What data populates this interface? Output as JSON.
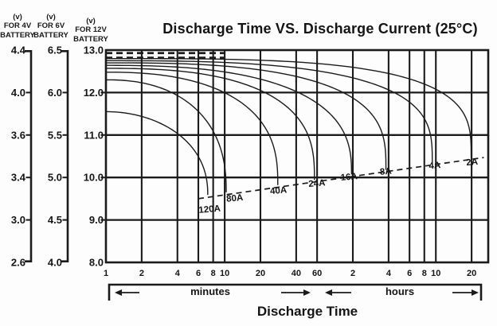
{
  "chart_data": {
    "type": "line",
    "title": "Discharge Time VS. Discharge Current (25°C)",
    "x_axis": {
      "label": "Discharge Time",
      "scale": "log",
      "range_minutes": [
        1,
        1660
      ],
      "unit_sections": [
        {
          "label": "minutes",
          "tick_values_min": [
            1,
            2,
            4,
            6,
            8,
            10,
            20,
            40,
            60
          ],
          "tick_labels": [
            "1",
            "2",
            "4",
            "6",
            "8",
            "10",
            "20",
            "40",
            "60"
          ]
        },
        {
          "label": "hours",
          "tick_values_min": [
            120,
            240,
            360,
            480,
            600,
            1200
          ],
          "tick_labels": [
            "2",
            "4",
            "6",
            "8",
            "10",
            "20"
          ]
        }
      ]
    },
    "y_axes": [
      {
        "unit": "(v)",
        "name_line1": "FOR 4V",
        "name_line2": "BATTERY",
        "tick_labels": [
          "4.4",
          "4.0",
          "3.6",
          "3.4",
          "3.0",
          "2.6"
        ]
      },
      {
        "unit": "(v)",
        "name_line1": "FOR 6V",
        "name_line2": "BATTERY",
        "tick_labels": [
          "6.5",
          "6.0",
          "5.5",
          "5.0",
          "4.5",
          "4.0"
        ]
      },
      {
        "unit": "(v)",
        "name_line1": "FOR 12V",
        "name_line2": "BATTERY",
        "tick_labels": [
          "13.0",
          "12.0",
          "11.0",
          "10.0",
          "9.0",
          "8.0"
        ],
        "range": [
          8.0,
          13.0
        ]
      }
    ],
    "grid": true,
    "series_note": "discharge curves, 12V-battery voltage vs time at constant current",
    "series": [
      {
        "label": "120A",
        "current_A": 120,
        "v_start": 11.55,
        "t_end_min": 7.2,
        "v_cutoff": 9.6,
        "shape_p": 2.0,
        "shape_q": 0.45,
        "label_t_min": 7.5,
        "label_v": 9.26
      },
      {
        "label": "80A",
        "current_A": 80,
        "v_start": 12.3,
        "t_end_min": 10.3,
        "v_cutoff": 9.66,
        "shape_p": 2.3,
        "shape_q": 0.42,
        "label_t_min": 12.2,
        "label_v": 9.52
      },
      {
        "label": "40A",
        "current_A": 40,
        "v_start": 12.48,
        "t_end_min": 28,
        "v_cutoff": 9.83,
        "shape_p": 2.4,
        "shape_q": 0.38,
        "label_t_min": 28.5,
        "label_v": 9.7
      },
      {
        "label": "24A",
        "current_A": 24,
        "v_start": 12.57,
        "t_end_min": 57,
        "v_cutoff": 9.95,
        "shape_p": 2.6,
        "shape_q": 0.36,
        "label_t_min": 60,
        "label_v": 9.87
      },
      {
        "label": "16A",
        "current_A": 16,
        "v_start": 12.64,
        "t_end_min": 117,
        "v_cutoff": 10.08,
        "shape_p": 2.6,
        "shape_q": 0.38,
        "label_t_min": 112,
        "label_v": 10.02
      },
      {
        "label": "8A",
        "current_A": 8,
        "v_start": 12.7,
        "t_end_min": 228,
        "v_cutoff": 10.19,
        "shape_p": 2.8,
        "shape_q": 0.33,
        "label_t_min": 228,
        "label_v": 10.15
      },
      {
        "label": "4A",
        "current_A": 4,
        "v_start": 12.75,
        "t_end_min": 560,
        "v_cutoff": 10.33,
        "shape_p": 2.9,
        "shape_q": 0.31,
        "label_t_min": 590,
        "label_v": 10.29
      },
      {
        "label": "2A",
        "current_A": 2,
        "v_start": 12.8,
        "t_end_min": 1190,
        "v_cutoff": 10.46,
        "shape_p": 3.4,
        "shape_q": 0.3,
        "label_t_min": 1215,
        "label_v": 10.37
      }
    ],
    "cutoff_line": {
      "style": "dashed",
      "points_t_v": [
        [
          6.0,
          9.5
        ],
        [
          1520,
          10.47
        ]
      ]
    },
    "reference_lines": [
      {
        "style": "dashed",
        "v": 12.93,
        "t_start_min": 1,
        "t_end_min": 10
      },
      {
        "style": "dashed",
        "v": 12.82,
        "t_start_min": 1,
        "t_end_min": 10
      }
    ]
  }
}
